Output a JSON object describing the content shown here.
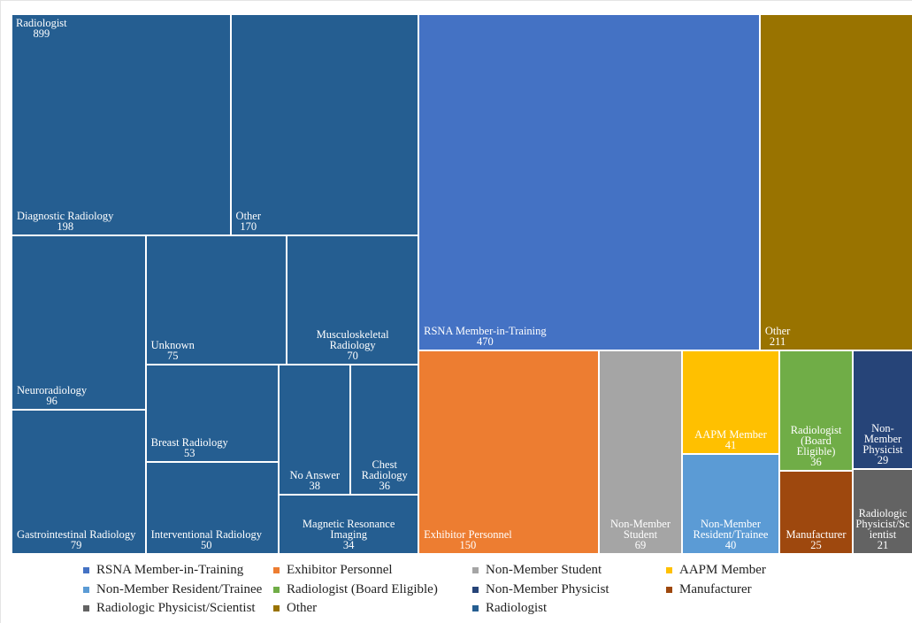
{
  "chart_data": {
    "type": "treemap",
    "series": [
      {
        "name": "RSNA Member-in-Training",
        "color": "#4472c4",
        "value": 470
      },
      {
        "name": "Exhibitor Personnel",
        "color": "#ed7d31",
        "value": 150
      },
      {
        "name": "Non-Member Student",
        "color": "#a5a5a5",
        "value": 69
      },
      {
        "name": "AAPM Member",
        "color": "#ffc000",
        "value": 41
      },
      {
        "name": "Non-Member Resident/Trainee",
        "color": "#5b9bd5",
        "value": 40
      },
      {
        "name": "Radiologist (Board Eligible)",
        "color": "#70ad47",
        "value": 36
      },
      {
        "name": "Non-Member Physicist",
        "color": "#264478",
        "value": 29
      },
      {
        "name": "Manufacturer",
        "color": "#9e480e",
        "value": 25
      },
      {
        "name": "Radiologic Physicist/Scientist",
        "color": "#636363",
        "value": 21
      },
      {
        "name": "Other",
        "color": "#997300",
        "value": 211
      },
      {
        "name": "Radiologist",
        "color": "#255e91",
        "value": 899,
        "children": [
          {
            "name": "Diagnostic Radiology",
            "value": 198
          },
          {
            "name": "Other",
            "value": 170
          },
          {
            "name": "Neuroradiology",
            "value": 96
          },
          {
            "name": "Gastrointestinal Radiology",
            "value": 79
          },
          {
            "name": "Unknown",
            "value": 75
          },
          {
            "name": "Musculoskeletal Radiology",
            "value": 70
          },
          {
            "name": "Breast Radiology",
            "value": 53
          },
          {
            "name": "Interventional Radiology",
            "value": 50
          },
          {
            "name": "No Answer",
            "value": 38
          },
          {
            "name": "Chest Radiology",
            "value": 36
          },
          {
            "name": "Magnetic Resonance Imaging",
            "value": 34
          }
        ]
      }
    ],
    "legend": true
  }
}
